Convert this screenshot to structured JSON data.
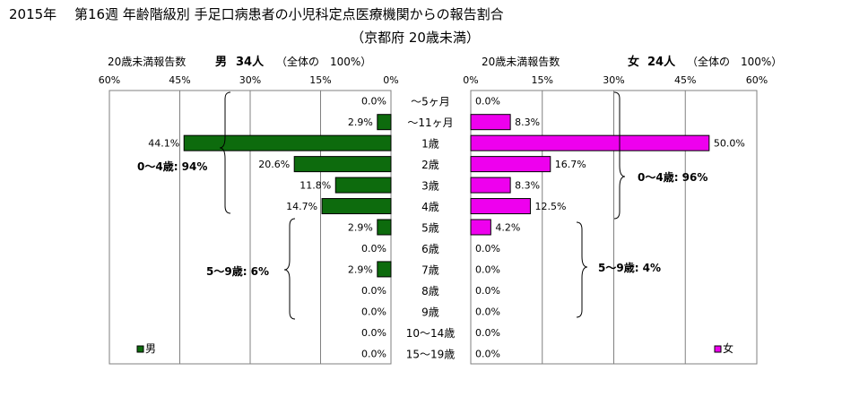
{
  "title_line1": "2015年　 第16週 年齢階級別 手足口病患者の小児科定点医療機関からの報告割合",
  "title_line2": "（京都府 20歳未満）",
  "chart_data": {
    "type": "bar",
    "orientation": "horizontal-butterfly",
    "categories": [
      "～5ヶ月",
      "～11ヶ月",
      "1歳",
      "2歳",
      "3歳",
      "4歳",
      "5歳",
      "6歳",
      "7歳",
      "8歳",
      "9歳",
      "10～14歳",
      "15～19歳"
    ],
    "xlim": [
      0,
      60
    ],
    "ticks": [
      "0%",
      "15%",
      "30%",
      "45%",
      "60%"
    ],
    "grid": true,
    "male": {
      "header_label": "20歳未満報告数",
      "header_sex": "男",
      "header_count": "34人",
      "header_total": "（全体の　100%）",
      "legend": "男",
      "color": "#0d6b0d",
      "values": [
        0.0,
        2.9,
        44.1,
        20.6,
        11.8,
        14.7,
        2.9,
        0.0,
        2.9,
        0.0,
        0.0,
        0.0,
        0.0
      ],
      "value_labels": [
        "0.0%",
        "2.9%",
        "44.1%",
        "20.6%",
        "11.8%",
        "14.7%",
        "2.9%",
        "0.0%",
        "2.9%",
        "0.0%",
        "0.0%",
        "0.0%",
        "0.0%"
      ],
      "annotations": [
        "0～4歳: 94%",
        "5～9歳: 6%"
      ]
    },
    "female": {
      "header_label": "20歳未満報告数",
      "header_sex": "女",
      "header_count": "24人",
      "header_total": "（全体の　100%）",
      "legend": "女",
      "color": "#ee00ee",
      "values": [
        0.0,
        8.3,
        50.0,
        16.7,
        8.3,
        12.5,
        4.2,
        0.0,
        0.0,
        0.0,
        0.0,
        0.0,
        0.0
      ],
      "value_labels": [
        "0.0%",
        "8.3%",
        "50.0%",
        "16.7%",
        "8.3%",
        "12.5%",
        "4.2%",
        "0.0%",
        "0.0%",
        "0.0%",
        "0.0%",
        "0.0%",
        "0.0%"
      ],
      "annotations": [
        "0～4歳: 96%",
        "5～9歳: 4%"
      ]
    }
  }
}
